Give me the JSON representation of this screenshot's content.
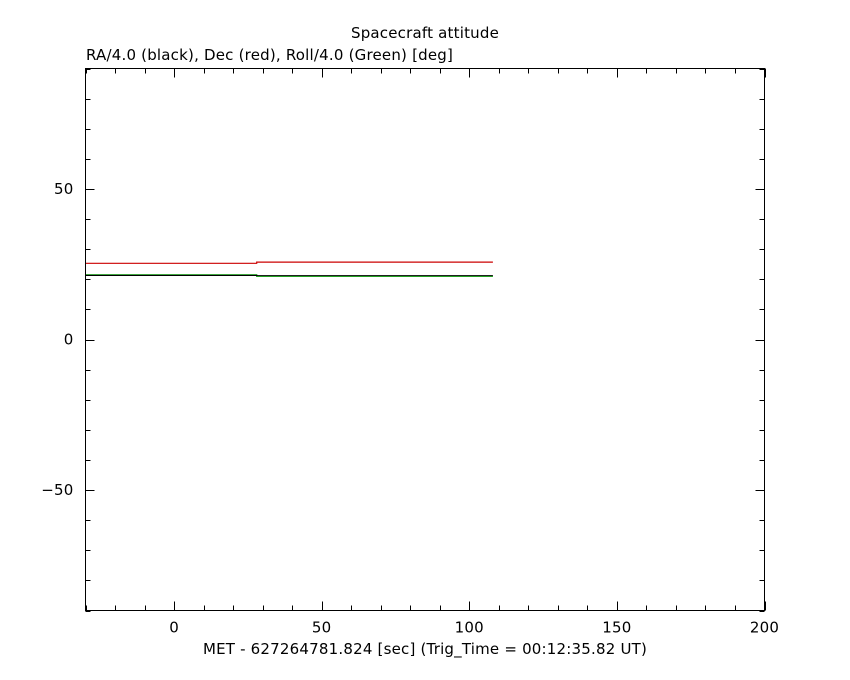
{
  "chart_data": {
    "type": "line",
    "title": "Spacecraft attitude",
    "subtitle": "RA/4.0 (black), Dec (red), Roll/4.0 (Green) [deg]",
    "xlabel": "MET - 627264781.824 [sec] (Trig_Time = 00:12:35.82 UT)",
    "ylabel": "",
    "xlim": [
      -30,
      200
    ],
    "ylim": [
      -90,
      90
    ],
    "x_major_ticks": [
      0,
      50,
      100,
      150,
      200
    ],
    "x_minor_step": 10,
    "y_major_ticks": [
      -50,
      0,
      50
    ],
    "y_minor_step": 10,
    "grid": false,
    "series": [
      {
        "key": "ra",
        "color": "#000000",
        "x": [
          -30,
          28,
          28,
          108
        ],
        "y": [
          21.3,
          21.3,
          21.2,
          21.2
        ]
      },
      {
        "key": "dec",
        "color": "#cc0000",
        "x": [
          -30,
          28,
          28,
          108
        ],
        "y": [
          25.3,
          25.3,
          25.7,
          25.7
        ]
      },
      {
        "key": "roll",
        "color": "#00cc00",
        "x": [
          -30,
          28,
          28,
          108
        ],
        "y": [
          21.5,
          21.5,
          21.0,
          21.0
        ]
      }
    ]
  }
}
